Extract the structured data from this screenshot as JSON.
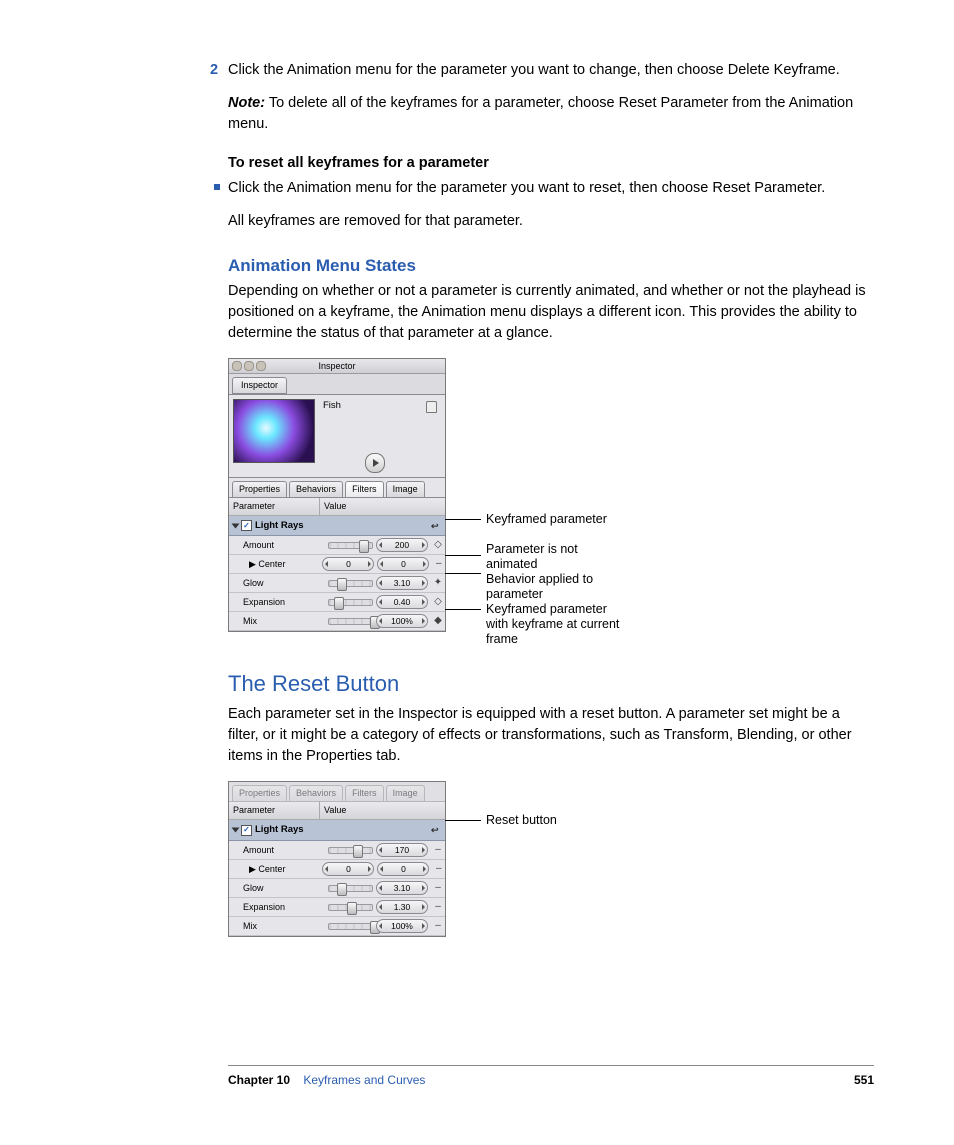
{
  "step_number": "2",
  "step_text": "Click the Animation menu for the parameter you want to change, then choose Delete Keyframe.",
  "note_label": "Note:",
  "note_text": " To delete all of the keyframes for a parameter, choose Reset Parameter from the Animation menu.",
  "reset_heading": "To reset all keyframes for a parameter",
  "reset_bullet": "Click the Animation menu for the parameter you want to reset, then choose Reset Parameter.",
  "reset_after": "All keyframes are removed for that parameter.",
  "subhead1": "Animation Menu States",
  "subhead1_body": "Depending on whether or not a parameter is currently animated, and whether or not the playhead is positioned on a keyframe, the Animation menu displays a different icon. This provides the ability to determine the status of that parameter at a glance.",
  "sechead": "The Reset Button",
  "sec_body": "Each parameter set in the Inspector is equipped with a reset button. A parameter set might be a filter, or it might be a category of effects or transformations, such as Transform, Blending, or other items in the Properties tab.",
  "inspector": {
    "window_title": "Inspector",
    "panel_tab": "Inspector",
    "item_name": "Fish",
    "sub_tabs": [
      "Properties",
      "Behaviors",
      "Filters",
      "Image"
    ],
    "active_sub_tab": "Filters",
    "col_param": "Parameter",
    "col_value": "Value",
    "group": "Light Rays",
    "rows": [
      {
        "name": "Amount",
        "value": "200",
        "thumb": 0.7,
        "anim": "◇"
      },
      {
        "name": "Center",
        "v1": "0",
        "v2": "0",
        "anim": "–",
        "disclose": true
      },
      {
        "name": "Glow",
        "value": "3.10",
        "thumb": 0.18,
        "anim": "✦"
      },
      {
        "name": "Expansion",
        "value": "0.40",
        "thumb": 0.12,
        "anim": "◇"
      },
      {
        "name": "Mix",
        "value": "100%",
        "thumb": 0.95,
        "anim": "◆"
      }
    ]
  },
  "callouts": {
    "c1": "Keyframed parameter",
    "c2a": "Parameter is not",
    "c2b": "animated",
    "c3a": "Behavior applied to",
    "c3b": "parameter",
    "c4a": "Keyframed parameter",
    "c4b": "with keyframe at current",
    "c4c": "frame"
  },
  "inspector2": {
    "rows": [
      {
        "name": "Amount",
        "value": "170",
        "thumb": 0.55,
        "anim": "–"
      },
      {
        "name": "Center",
        "v1": "0",
        "v2": "0",
        "anim": "–",
        "disclose": true
      },
      {
        "name": "Glow",
        "value": "3.10",
        "thumb": 0.18,
        "anim": "–"
      },
      {
        "name": "Expansion",
        "value": "1.30",
        "thumb": 0.42,
        "anim": "–"
      },
      {
        "name": "Mix",
        "value": "100%",
        "thumb": 0.95,
        "anim": "–"
      }
    ]
  },
  "callout_reset": "Reset button",
  "footer": {
    "chapter": "Chapter 10",
    "title": "Keyframes and Curves",
    "page": "551"
  }
}
